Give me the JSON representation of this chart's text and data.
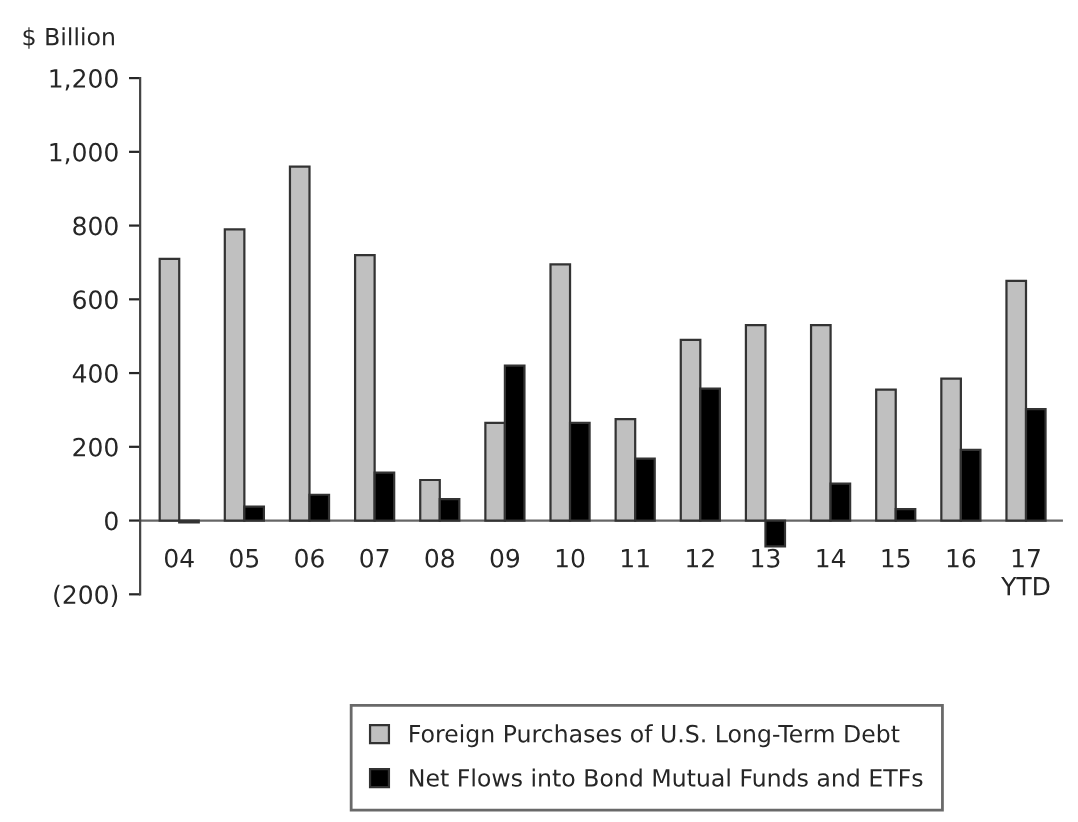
{
  "chart_data": {
    "type": "bar",
    "ylabel": "$ Billion",
    "categories": [
      "04",
      "05",
      "06",
      "07",
      "08",
      "09",
      "10",
      "11",
      "12",
      "13",
      "14",
      "15",
      "16",
      "17\nYTD"
    ],
    "series": [
      {
        "name": "Foreign Purchases of U.S. Long-Term Debt",
        "color": "#c0c0c0",
        "values": [
          710,
          790,
          960,
          720,
          110,
          265,
          695,
          275,
          490,
          530,
          530,
          355,
          385,
          650
        ]
      },
      {
        "name": "Net Flows into Bond Mutual Funds and ETFs",
        "color": "#000000",
        "values": [
          -5,
          38,
          70,
          130,
          58,
          420,
          265,
          168,
          358,
          -70,
          100,
          31,
          192,
          302
        ]
      }
    ],
    "ylim": [
      -200,
      1200
    ],
    "yticks": [
      {
        "value": -200,
        "label": "(200)"
      },
      0,
      200,
      400,
      600,
      800,
      {
        "value": 1000,
        "label": "1,000"
      },
      {
        "value": 1200,
        "label": "1,200"
      }
    ],
    "grid": false,
    "legend": "bottom"
  }
}
